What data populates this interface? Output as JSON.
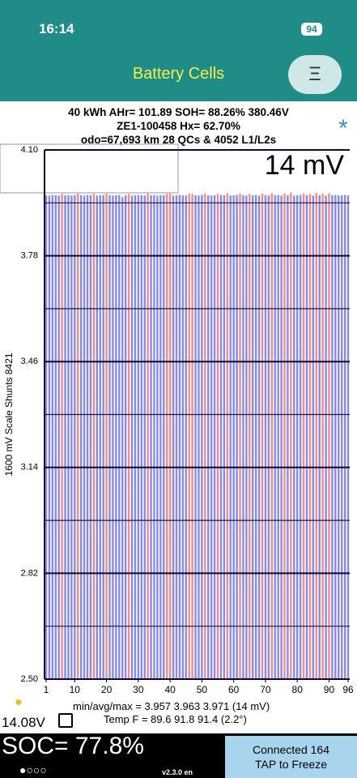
{
  "status_bar": {
    "time": "16:14",
    "battery": "94"
  },
  "header": {
    "title": "Battery Cells"
  },
  "summary": {
    "line1": "40 kWh  AHr= 101.89  SOH= 88.26%   380.46V",
    "line2": "ZE1-100458    Hx= 62.70%",
    "line3": "odo=67,693 km 28 QCs & 4052 L1/L2s"
  },
  "chart_data": {
    "type": "bar",
    "big_label": "14 mV",
    "y_label": "1600 mV Scale   Shunts 8421",
    "x": [
      1,
      2,
      3,
      4,
      5,
      6,
      7,
      8,
      9,
      10,
      11,
      12,
      13,
      14,
      15,
      16,
      17,
      18,
      19,
      20,
      21,
      22,
      23,
      24,
      25,
      26,
      27,
      28,
      29,
      30,
      31,
      32,
      33,
      34,
      35,
      36,
      37,
      38,
      39,
      40,
      41,
      42,
      43,
      44,
      45,
      46,
      47,
      48,
      49,
      50,
      51,
      52,
      53,
      54,
      55,
      56,
      57,
      58,
      59,
      60,
      61,
      62,
      63,
      64,
      65,
      66,
      67,
      68,
      69,
      70,
      71,
      72,
      73,
      74,
      75,
      76,
      77,
      78,
      79,
      80,
      81,
      82,
      83,
      84,
      85,
      86,
      87,
      88,
      89,
      90,
      91,
      92,
      93,
      94,
      95,
      96
    ],
    "values": [
      3.963,
      3.962,
      3.964,
      3.963,
      3.962,
      3.967,
      3.963,
      3.964,
      3.962,
      3.963,
      3.968,
      3.963,
      3.962,
      3.964,
      3.963,
      3.967,
      3.962,
      3.963,
      3.964,
      3.968,
      3.963,
      3.962,
      3.963,
      3.964,
      3.957,
      3.963,
      3.967,
      3.962,
      3.963,
      3.964,
      3.963,
      3.962,
      3.968,
      3.963,
      3.964,
      3.962,
      3.963,
      3.963,
      3.967,
      3.968,
      3.962,
      3.963,
      3.964,
      3.963,
      3.962,
      3.968,
      3.967,
      3.963,
      3.962,
      3.964,
      3.968,
      3.963,
      3.962,
      3.963,
      3.967,
      3.964,
      3.963,
      3.969,
      3.962,
      3.963,
      3.964,
      3.968,
      3.963,
      3.962,
      3.967,
      3.963,
      3.964,
      3.962,
      3.968,
      3.963,
      3.962,
      3.969,
      3.963,
      3.964,
      3.962,
      3.968,
      3.963,
      3.971,
      3.962,
      3.963,
      3.964,
      3.969,
      3.963,
      3.967,
      3.962,
      3.97,
      3.963,
      3.968,
      3.962,
      3.969,
      3.963,
      3.964,
      3.962,
      3.963,
      3.964,
      3.963
    ],
    "colors": [
      "#8a8ae6",
      "#8a8ae6",
      "#8a8ae6",
      "#8a8ae6",
      "#8a8ae6",
      "#f28b8b",
      "#8a8ae6",
      "#8a8ae6",
      "#8a8ae6",
      "#8a8ae6",
      "#f28b8b",
      "#8a8ae6",
      "#8a8ae6",
      "#8a8ae6",
      "#8a8ae6",
      "#f28b8b",
      "#8a8ae6",
      "#8a8ae6",
      "#8a8ae6",
      "#f28b8b",
      "#8a8ae6",
      "#8a8ae6",
      "#8a8ae6",
      "#8a8ae6",
      "#8a8ae6",
      "#8a8ae6",
      "#f28b8b",
      "#8a8ae6",
      "#8a8ae6",
      "#8a8ae6",
      "#8a8ae6",
      "#8a8ae6",
      "#f28b8b",
      "#8a8ae6",
      "#8a8ae6",
      "#8a8ae6",
      "#8a8ae6",
      "#8a8ae6",
      "#f28b8b",
      "#f28b8b",
      "#8a8ae6",
      "#8a8ae6",
      "#8a8ae6",
      "#8a8ae6",
      "#8a8ae6",
      "#f28b8b",
      "#f28b8b",
      "#8a8ae6",
      "#8a8ae6",
      "#8a8ae6",
      "#f28b8b",
      "#8a8ae6",
      "#8a8ae6",
      "#8a8ae6",
      "#f28b8b",
      "#8a8ae6",
      "#8a8ae6",
      "#f28b8b",
      "#8a8ae6",
      "#8a8ae6",
      "#8a8ae6",
      "#f28b8b",
      "#8a8ae6",
      "#8a8ae6",
      "#f28b8b",
      "#8a8ae6",
      "#8a8ae6",
      "#8a8ae6",
      "#f28b8b",
      "#8a8ae6",
      "#8a8ae6",
      "#f28b8b",
      "#8a8ae6",
      "#8a8ae6",
      "#8a8ae6",
      "#f28b8b",
      "#8a8ae6",
      "#f28b8b",
      "#8a8ae6",
      "#8a8ae6",
      "#8a8ae6",
      "#f28b8b",
      "#8a8ae6",
      "#f28b8b",
      "#8a8ae6",
      "#f28b8b",
      "#8a8ae6",
      "#f28b8b",
      "#8a8ae6",
      "#f28b8b",
      "#8a8ae6",
      "#8a8ae6",
      "#8a8ae6",
      "#8a8ae6",
      "#8a8ae6",
      "#8a8ae6"
    ],
    "ylim": [
      2.5,
      4.1
    ],
    "yticks": [
      {
        "value": 2.5,
        "label": "2.50"
      },
      2.82,
      3.14,
      3.46,
      3.78,
      {
        "value": 4.1,
        "label": "4.10"
      }
    ],
    "minor_yticks": [
      2.66,
      2.98,
      3.3,
      3.62,
      3.94
    ],
    "xticks": [
      1,
      10,
      20,
      30,
      40,
      50,
      60,
      70,
      80,
      90,
      96
    ],
    "grid": true
  },
  "footer": {
    "minavgmax": "min/avg/max = 3.957 3.963 3.971  (14 mV)",
    "temp": "Temp F = 89.6  91.8  91.4  (2.2°)",
    "voltage12": "14.08V",
    "soc": "SOC= 77.8%",
    "version": "v2.3.0 en",
    "connected": "Connected 164",
    "tap": "TAP to Freeze"
  }
}
